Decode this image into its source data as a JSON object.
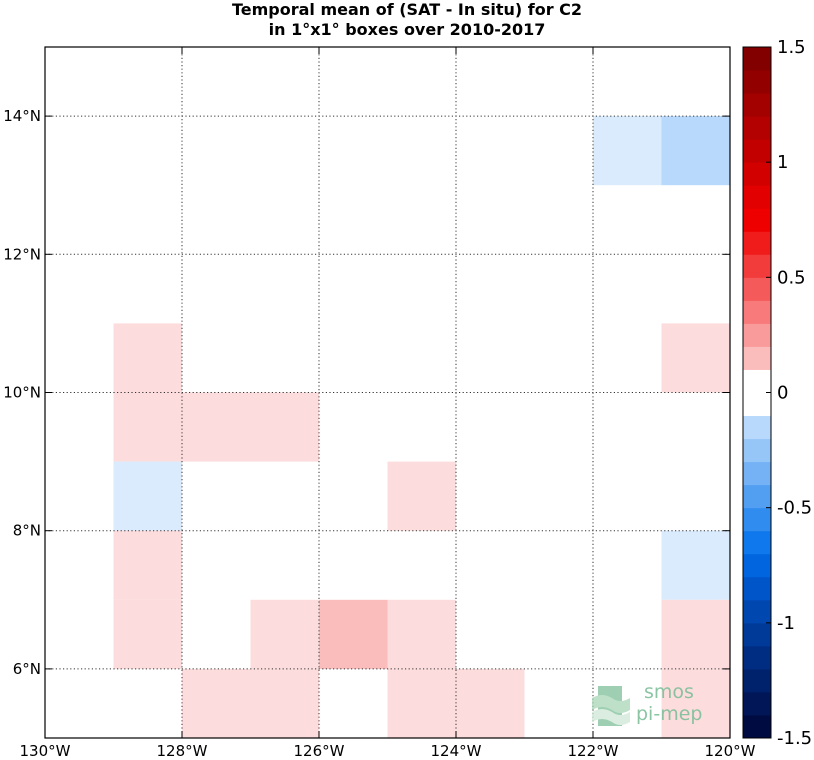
{
  "chart_data": {
    "type": "heatmap",
    "title": [
      "Temporal mean of (SAT - In situ) for C2",
      "in 1°x1° boxes over 2010-2017"
    ],
    "xlim": [
      -130,
      -120
    ],
    "ylim": [
      5,
      15
    ],
    "x_ticks": [
      {
        "value": -130,
        "label": "130°W"
      },
      {
        "value": -128,
        "label": "128°W"
      },
      {
        "value": -126,
        "label": "126°W"
      },
      {
        "value": -124,
        "label": "124°W"
      },
      {
        "value": -122,
        "label": "122°W"
      },
      {
        "value": -120,
        "label": "120°W"
      }
    ],
    "y_ticks": [
      {
        "value": 6,
        "label": "6°N"
      },
      {
        "value": 8,
        "label": "8°N"
      },
      {
        "value": 10,
        "label": "10°N"
      },
      {
        "value": 12,
        "label": "12°N"
      },
      {
        "value": 14,
        "label": "14°N"
      }
    ],
    "grid": true,
    "colorbar": {
      "range": [
        -1.5,
        1.5
      ],
      "step": 0.1,
      "ticks": [
        {
          "value": 1.5,
          "label": "1.5"
        },
        {
          "value": 1,
          "label": "1"
        },
        {
          "value": 0.5,
          "label": "0.5"
        },
        {
          "value": 0,
          "label": "0"
        },
        {
          "value": -0.5,
          "label": "-0.5"
        },
        {
          "value": -1,
          "label": "-1"
        },
        {
          "value": -1.5,
          "label": "-1.5"
        }
      ]
    },
    "cells": [
      {
        "lon": -122,
        "lat": 13,
        "value": -0.1
      },
      {
        "lon": -121,
        "lat": 13,
        "value": -0.2
      },
      {
        "lon": -129,
        "lat": 10,
        "value": 0.1
      },
      {
        "lon": -121,
        "lat": 10,
        "value": 0.1
      },
      {
        "lon": -129,
        "lat": 9,
        "value": 0.1
      },
      {
        "lon": -128,
        "lat": 9,
        "value": 0.1
      },
      {
        "lon": -127,
        "lat": 9,
        "value": 0.1
      },
      {
        "lon": -129,
        "lat": 8,
        "value": -0.1
      },
      {
        "lon": -125,
        "lat": 8,
        "value": 0.1
      },
      {
        "lon": -129,
        "lat": 7,
        "value": 0.1
      },
      {
        "lon": -121,
        "lat": 7,
        "value": -0.1
      },
      {
        "lon": -129,
        "lat": 6,
        "value": 0.1
      },
      {
        "lon": -127,
        "lat": 6,
        "value": 0.1
      },
      {
        "lon": -126,
        "lat": 6,
        "value": 0.2
      },
      {
        "lon": -125,
        "lat": 6,
        "value": 0.1
      },
      {
        "lon": -121,
        "lat": 6,
        "value": 0.1
      },
      {
        "lon": -128,
        "lat": 5,
        "value": 0.1
      },
      {
        "lon": -127,
        "lat": 5,
        "value": 0.1
      },
      {
        "lon": -125,
        "lat": 5,
        "value": 0.1
      },
      {
        "lon": -124,
        "lat": 5,
        "value": 0.1
      },
      {
        "lon": -121,
        "lat": 5,
        "value": 0.1
      }
    ]
  },
  "logo": {
    "line1": "smos",
    "line2": "pi-mep"
  }
}
